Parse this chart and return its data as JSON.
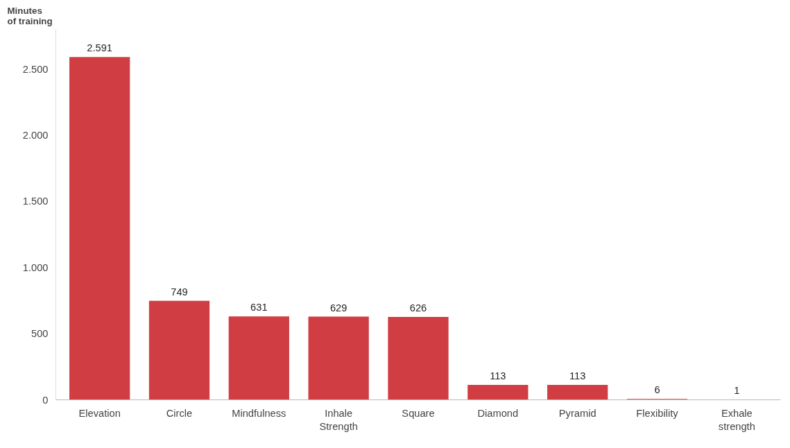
{
  "chart_data": {
    "type": "bar",
    "ylabel": "Minutes\nof training",
    "categories": [
      "Elevation",
      "Circle",
      "Mindfulness",
      "Inhale\nStrength",
      "Square",
      "Diamond",
      "Pyramid",
      "Flexibility",
      "Exhale\nstrength"
    ],
    "values": [
      2591,
      749,
      631,
      629,
      626,
      113,
      113,
      6,
      1
    ],
    "value_labels": [
      "2.591",
      "749",
      "631",
      "629",
      "626",
      "113",
      "113",
      "6",
      "1"
    ],
    "color": "#d03e44",
    "ylim": [
      0,
      2800
    ],
    "yticks": [
      0,
      500,
      {
        "value": 1000,
        "label": "1.000"
      },
      {
        "value": 1500,
        "label": "1.500"
      },
      {
        "value": 2000,
        "label": "2.000"
      },
      {
        "value": 2500,
        "label": "2.500"
      }
    ],
    "grid": false
  }
}
